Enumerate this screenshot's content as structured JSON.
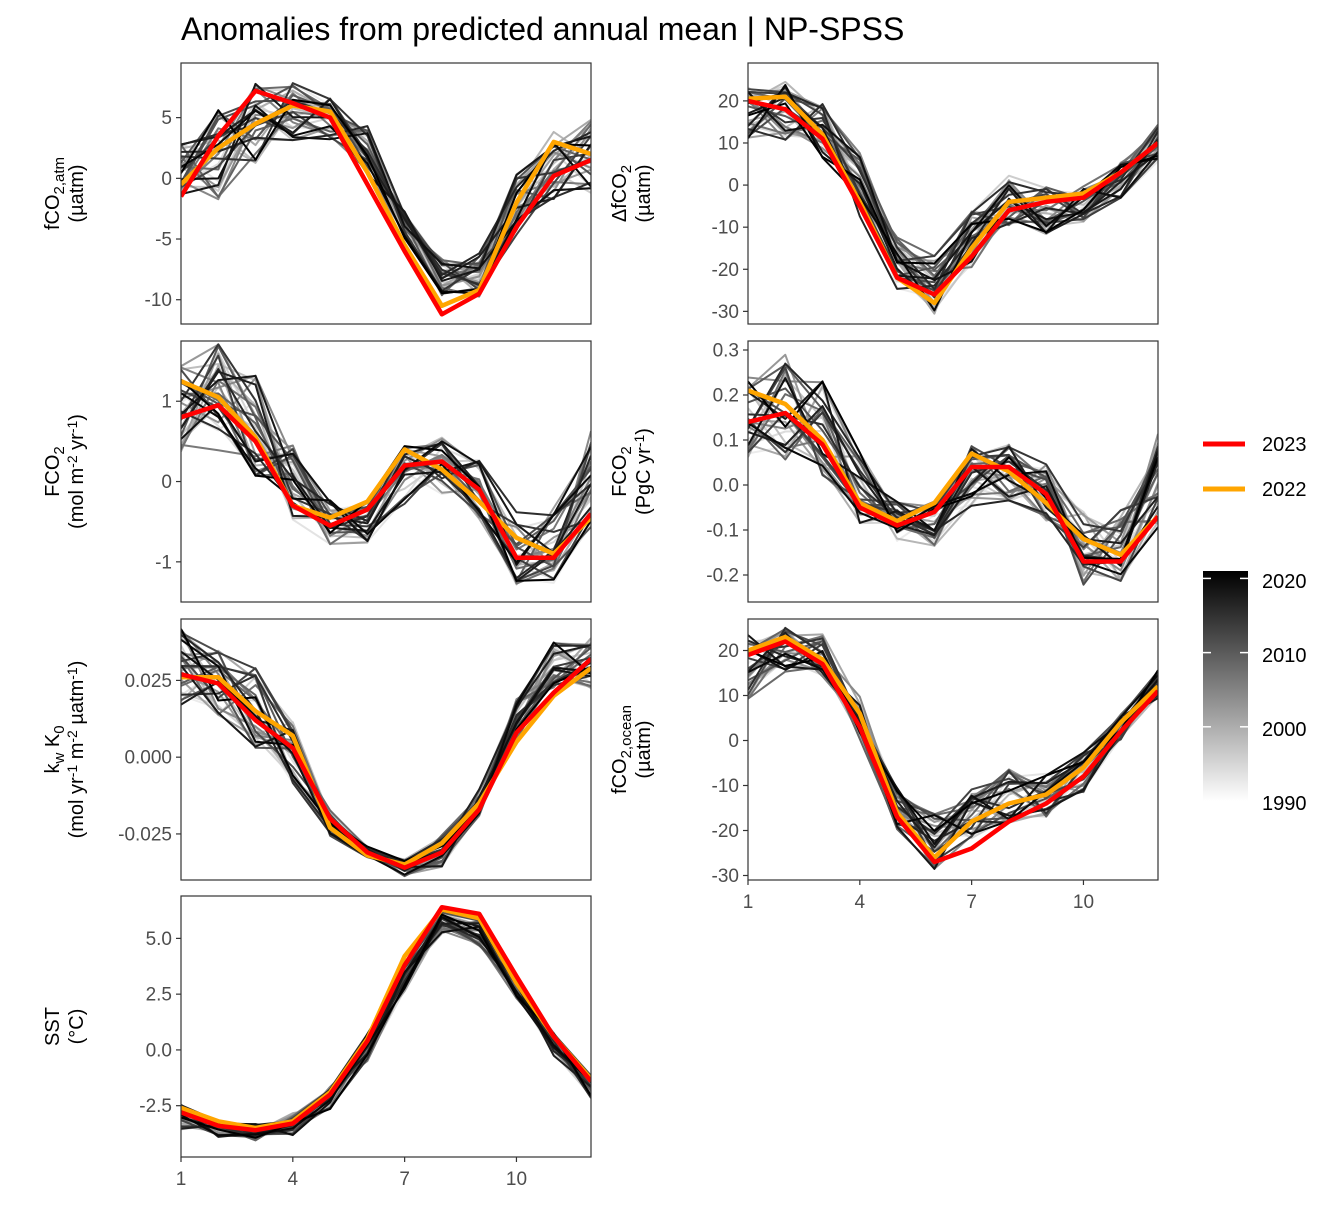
{
  "title": "Anomalies from predicted annual mean | NP-SPSS",
  "colors": {
    "2023": "#ff0000",
    "2022": "#ffa500",
    "grey_dark": "#000000",
    "grey_light": "#ffffff"
  },
  "legend": {
    "lines": [
      {
        "label": "2023",
        "color": "#ff0000"
      },
      {
        "label": "2022",
        "color": "#ffa500"
      }
    ],
    "colorbar": {
      "labels": [
        "2020",
        "2010",
        "2000",
        "1990"
      ],
      "range": [
        1990,
        2021
      ]
    }
  },
  "chart_data": [
    {
      "type": "line",
      "id": "fco2_atm",
      "ylabel": [
        "fCO",
        "2,atm",
        "(µatm)"
      ],
      "xlim": [
        1,
        12
      ],
      "ylim": [
        -12,
        9.5
      ],
      "yticks": [
        "5",
        "0",
        "-5",
        "-10"
      ],
      "ytick_values": [
        5,
        0,
        -5,
        -10
      ],
      "xticks": [
        "1",
        "4",
        "7",
        "10"
      ],
      "band": {
        "hi": [
          3,
          6.5,
          8,
          8,
          7.5,
          4.5,
          -2.5,
          -6.5,
          -6,
          0.5,
          4,
          5
        ],
        "lo": [
          -2,
          -2,
          1,
          3,
          3,
          0,
          -5,
          -10,
          -10,
          -5,
          -2,
          -1.5
        ]
      },
      "x": [
        1,
        2,
        3,
        4,
        5,
        6,
        7,
        8,
        9,
        10,
        11,
        12
      ],
      "series": [
        {
          "name": "2023",
          "values": [
            -1.5,
            3.5,
            7.2,
            6.2,
            5,
            -0.5,
            -6,
            -11.2,
            -9.5,
            -4,
            0.2,
            1.5
          ]
        },
        {
          "name": "2022",
          "values": [
            -0.5,
            2.5,
            4.5,
            6,
            5.5,
            0.5,
            -5.5,
            -10.5,
            -9.2,
            -2,
            3,
            2
          ]
        }
      ]
    },
    {
      "type": "line",
      "id": "dfco2",
      "ylabel": [
        "ΔfCO",
        "2",
        "(µatm)"
      ],
      "xlim": [
        1,
        12
      ],
      "ylim": [
        -33,
        29
      ],
      "yticks": [
        "20",
        "10",
        "0",
        "-10",
        "-20",
        "-30"
      ],
      "ytick_values": [
        20,
        10,
        0,
        -10,
        -20,
        -30
      ],
      "xticks": [
        "1",
        "4",
        "7",
        "10"
      ],
      "band": {
        "hi": [
          24,
          26,
          20,
          8,
          -12,
          -16,
          -5,
          3,
          0,
          0,
          6,
          15
        ],
        "lo": [
          10,
          10,
          6,
          -8,
          -25,
          -31,
          -20,
          -10,
          -12,
          -9,
          -4,
          5
        ]
      },
      "x": [
        1,
        2,
        3,
        4,
        5,
        6,
        7,
        8,
        9,
        10,
        11,
        12
      ],
      "series": [
        {
          "name": "2023",
          "values": [
            20,
            18,
            11,
            -5,
            -22,
            -26,
            -17,
            -6,
            -4,
            -3,
            3,
            10
          ]
        },
        {
          "name": "2022",
          "values": [
            20.5,
            21,
            12,
            -4,
            -22,
            -28,
            -15,
            -4,
            -3,
            -2,
            3,
            10
          ]
        }
      ]
    },
    {
      "type": "line",
      "id": "fco2_flux",
      "ylabel": [
        "FCO",
        "2",
        "(mol m",
        "-2",
        " yr",
        "-1",
        ")"
      ],
      "xlim": [
        1,
        12
      ],
      "ylim": [
        -1.5,
        1.75
      ],
      "yticks": [
        "1",
        "0",
        "-1"
      ],
      "ytick_values": [
        1,
        0,
        -1
      ],
      "xticks": [
        "1",
        "4",
        "7",
        "10"
      ],
      "band": {
        "hi": [
          1.5,
          1.8,
          1.4,
          0.5,
          -0.2,
          -0.2,
          0.5,
          0.6,
          0.3,
          -0.3,
          -0.3,
          0.7
        ],
        "lo": [
          0.3,
          0.3,
          0,
          -0.5,
          -0.8,
          -0.8,
          -0.3,
          -0.2,
          -0.5,
          -1.35,
          -1.3,
          -0.6
        ]
      },
      "x": [
        1,
        2,
        3,
        4,
        5,
        6,
        7,
        8,
        9,
        10,
        11,
        12
      ],
      "series": [
        {
          "name": "2023",
          "values": [
            0.8,
            0.95,
            0.5,
            -0.3,
            -0.55,
            -0.35,
            0.2,
            0.25,
            -0.1,
            -0.95,
            -0.95,
            -0.4
          ]
        },
        {
          "name": "2022",
          "values": [
            1.25,
            1.05,
            0.55,
            -0.3,
            -0.45,
            -0.25,
            0.4,
            0.15,
            -0.25,
            -0.7,
            -0.9,
            -0.45
          ]
        }
      ]
    },
    {
      "type": "line",
      "id": "fco2_pgc",
      "ylabel": [
        "FCO",
        "2",
        "(PgC yr",
        "-1",
        ")"
      ],
      "xlim": [
        1,
        12
      ],
      "ylim": [
        -0.26,
        0.32
      ],
      "yticks": [
        "0.3",
        "0.2",
        "0.1",
        "0.0",
        "-0.1",
        "-0.2"
      ],
      "ytick_values": [
        0.3,
        0.2,
        0.1,
        0,
        -0.1,
        -0.2
      ],
      "xticks": [
        "1",
        "4",
        "7",
        "10"
      ],
      "band": {
        "hi": [
          0.25,
          0.3,
          0.24,
          0.1,
          -0.03,
          -0.03,
          0.09,
          0.1,
          0.05,
          -0.05,
          -0.05,
          0.12
        ],
        "lo": [
          0.05,
          0.05,
          0,
          -0.09,
          -0.14,
          -0.14,
          -0.05,
          -0.04,
          -0.09,
          -0.23,
          -0.22,
          -0.1
        ]
      },
      "x": [
        1,
        2,
        3,
        4,
        5,
        6,
        7,
        8,
        9,
        10,
        11,
        12
      ],
      "series": [
        {
          "name": "2023",
          "values": [
            0.14,
            0.16,
            0.09,
            -0.05,
            -0.09,
            -0.06,
            0.04,
            0.04,
            -0.02,
            -0.17,
            -0.17,
            -0.07
          ]
        },
        {
          "name": "2022",
          "values": [
            0.21,
            0.18,
            0.1,
            -0.04,
            -0.08,
            -0.04,
            0.07,
            0.03,
            -0.04,
            -0.12,
            -0.155,
            -0.07
          ]
        }
      ]
    },
    {
      "type": "line",
      "id": "kwk0",
      "ylabel": [
        "k",
        "w",
        " K",
        "0",
        "(mol yr",
        "-1",
        " m",
        "-2",
        " µatm",
        "-1",
        ")"
      ],
      "xlim": [
        1,
        12
      ],
      "ylim": [
        -0.04,
        0.045
      ],
      "yticks": [
        "0.025",
        "0.000",
        "-0.025"
      ],
      "ytick_values": [
        0.025,
        0,
        -0.025
      ],
      "xticks": [
        "1",
        "4",
        "7",
        "10"
      ],
      "band": {
        "hi": [
          0.043,
          0.036,
          0.032,
          0.012,
          -0.016,
          -0.029,
          -0.033,
          -0.025,
          -0.01,
          0.02,
          0.038,
          0.04
        ],
        "lo": [
          0.016,
          0.013,
          0.002,
          -0.01,
          -0.026,
          -0.033,
          -0.039,
          -0.036,
          -0.02,
          0.005,
          0.02,
          0.022
        ]
      },
      "x": [
        1,
        2,
        3,
        4,
        5,
        6,
        7,
        8,
        9,
        10,
        11,
        12
      ],
      "series": [
        {
          "name": "2023",
          "values": [
            0.027,
            0.024,
            0.012,
            0.003,
            -0.02,
            -0.031,
            -0.036,
            -0.031,
            -0.017,
            0.008,
            0.021,
            0.032
          ]
        },
        {
          "name": "2022",
          "values": [
            0.026,
            0.026,
            0.015,
            0.007,
            -0.023,
            -0.032,
            -0.035,
            -0.028,
            -0.015,
            0.005,
            0.02,
            0.029
          ]
        }
      ]
    },
    {
      "type": "line",
      "id": "fco2_ocean",
      "ylabel": [
        "fCO",
        "2,ocean",
        "(µatm)"
      ],
      "xlim": [
        1,
        12
      ],
      "ylim": [
        -31,
        27
      ],
      "yticks": [
        "20",
        "10",
        "0",
        "-10",
        "-20",
        "-30"
      ],
      "ytick_values": [
        20,
        10,
        0,
        -10,
        -20,
        -30
      ],
      "xticks": [
        "1",
        "4",
        "7",
        "10"
      ],
      "band": {
        "hi": [
          24,
          26,
          24,
          10,
          -10,
          -16,
          -10,
          -6,
          -7,
          -2,
          6,
          16
        ],
        "lo": [
          8,
          15,
          14,
          0,
          -20,
          -29,
          -22,
          -19,
          -18,
          -12,
          0,
          9
        ]
      },
      "x": [
        1,
        2,
        3,
        4,
        5,
        6,
        7,
        8,
        9,
        10,
        11,
        12
      ],
      "series": [
        {
          "name": "2023",
          "values": [
            19,
            22,
            17,
            3,
            -17,
            -27,
            -24,
            -18,
            -14,
            -8,
            2,
            11
          ]
        },
        {
          "name": "2022",
          "values": [
            20,
            23,
            18,
            6,
            -16,
            -26,
            -18,
            -14,
            -12,
            -6,
            4,
            12
          ]
        }
      ]
    },
    {
      "type": "line",
      "id": "sst",
      "ylabel": [
        "SST",
        "(°C)"
      ],
      "xlim": [
        1,
        12
      ],
      "ylim": [
        -4.8,
        6.9
      ],
      "yticks": [
        "5.0",
        "2.5",
        "0.0",
        "-2.5"
      ],
      "ytick_values": [
        5,
        2.5,
        0,
        -2.5
      ],
      "xticks": [
        "1",
        "4",
        "7",
        "10"
      ],
      "band": {
        "hi": [
          -2.4,
          -3.1,
          -3.3,
          -2.8,
          -1.6,
          0.8,
          3.9,
          6.2,
          6.0,
          3.3,
          0.8,
          -1.1
        ],
        "lo": [
          -3.6,
          -4.0,
          -4.1,
          -3.9,
          -2.7,
          -0.6,
          2.5,
          5.2,
          4.6,
          2.2,
          -0.3,
          -2.2
        ]
      },
      "x": [
        1,
        2,
        3,
        4,
        5,
        6,
        7,
        8,
        9,
        10,
        11,
        12
      ],
      "series": [
        {
          "name": "2023",
          "values": [
            -2.8,
            -3.4,
            -3.6,
            -3.3,
            -2.0,
            0.4,
            3.8,
            6.4,
            6.1,
            3.3,
            0.6,
            -1.4
          ]
        },
        {
          "name": "2022",
          "values": [
            -2.6,
            -3.2,
            -3.5,
            -3.2,
            -1.9,
            0.5,
            4.2,
            6.3,
            5.9,
            3.0,
            0.6,
            -1.3
          ]
        }
      ]
    }
  ]
}
